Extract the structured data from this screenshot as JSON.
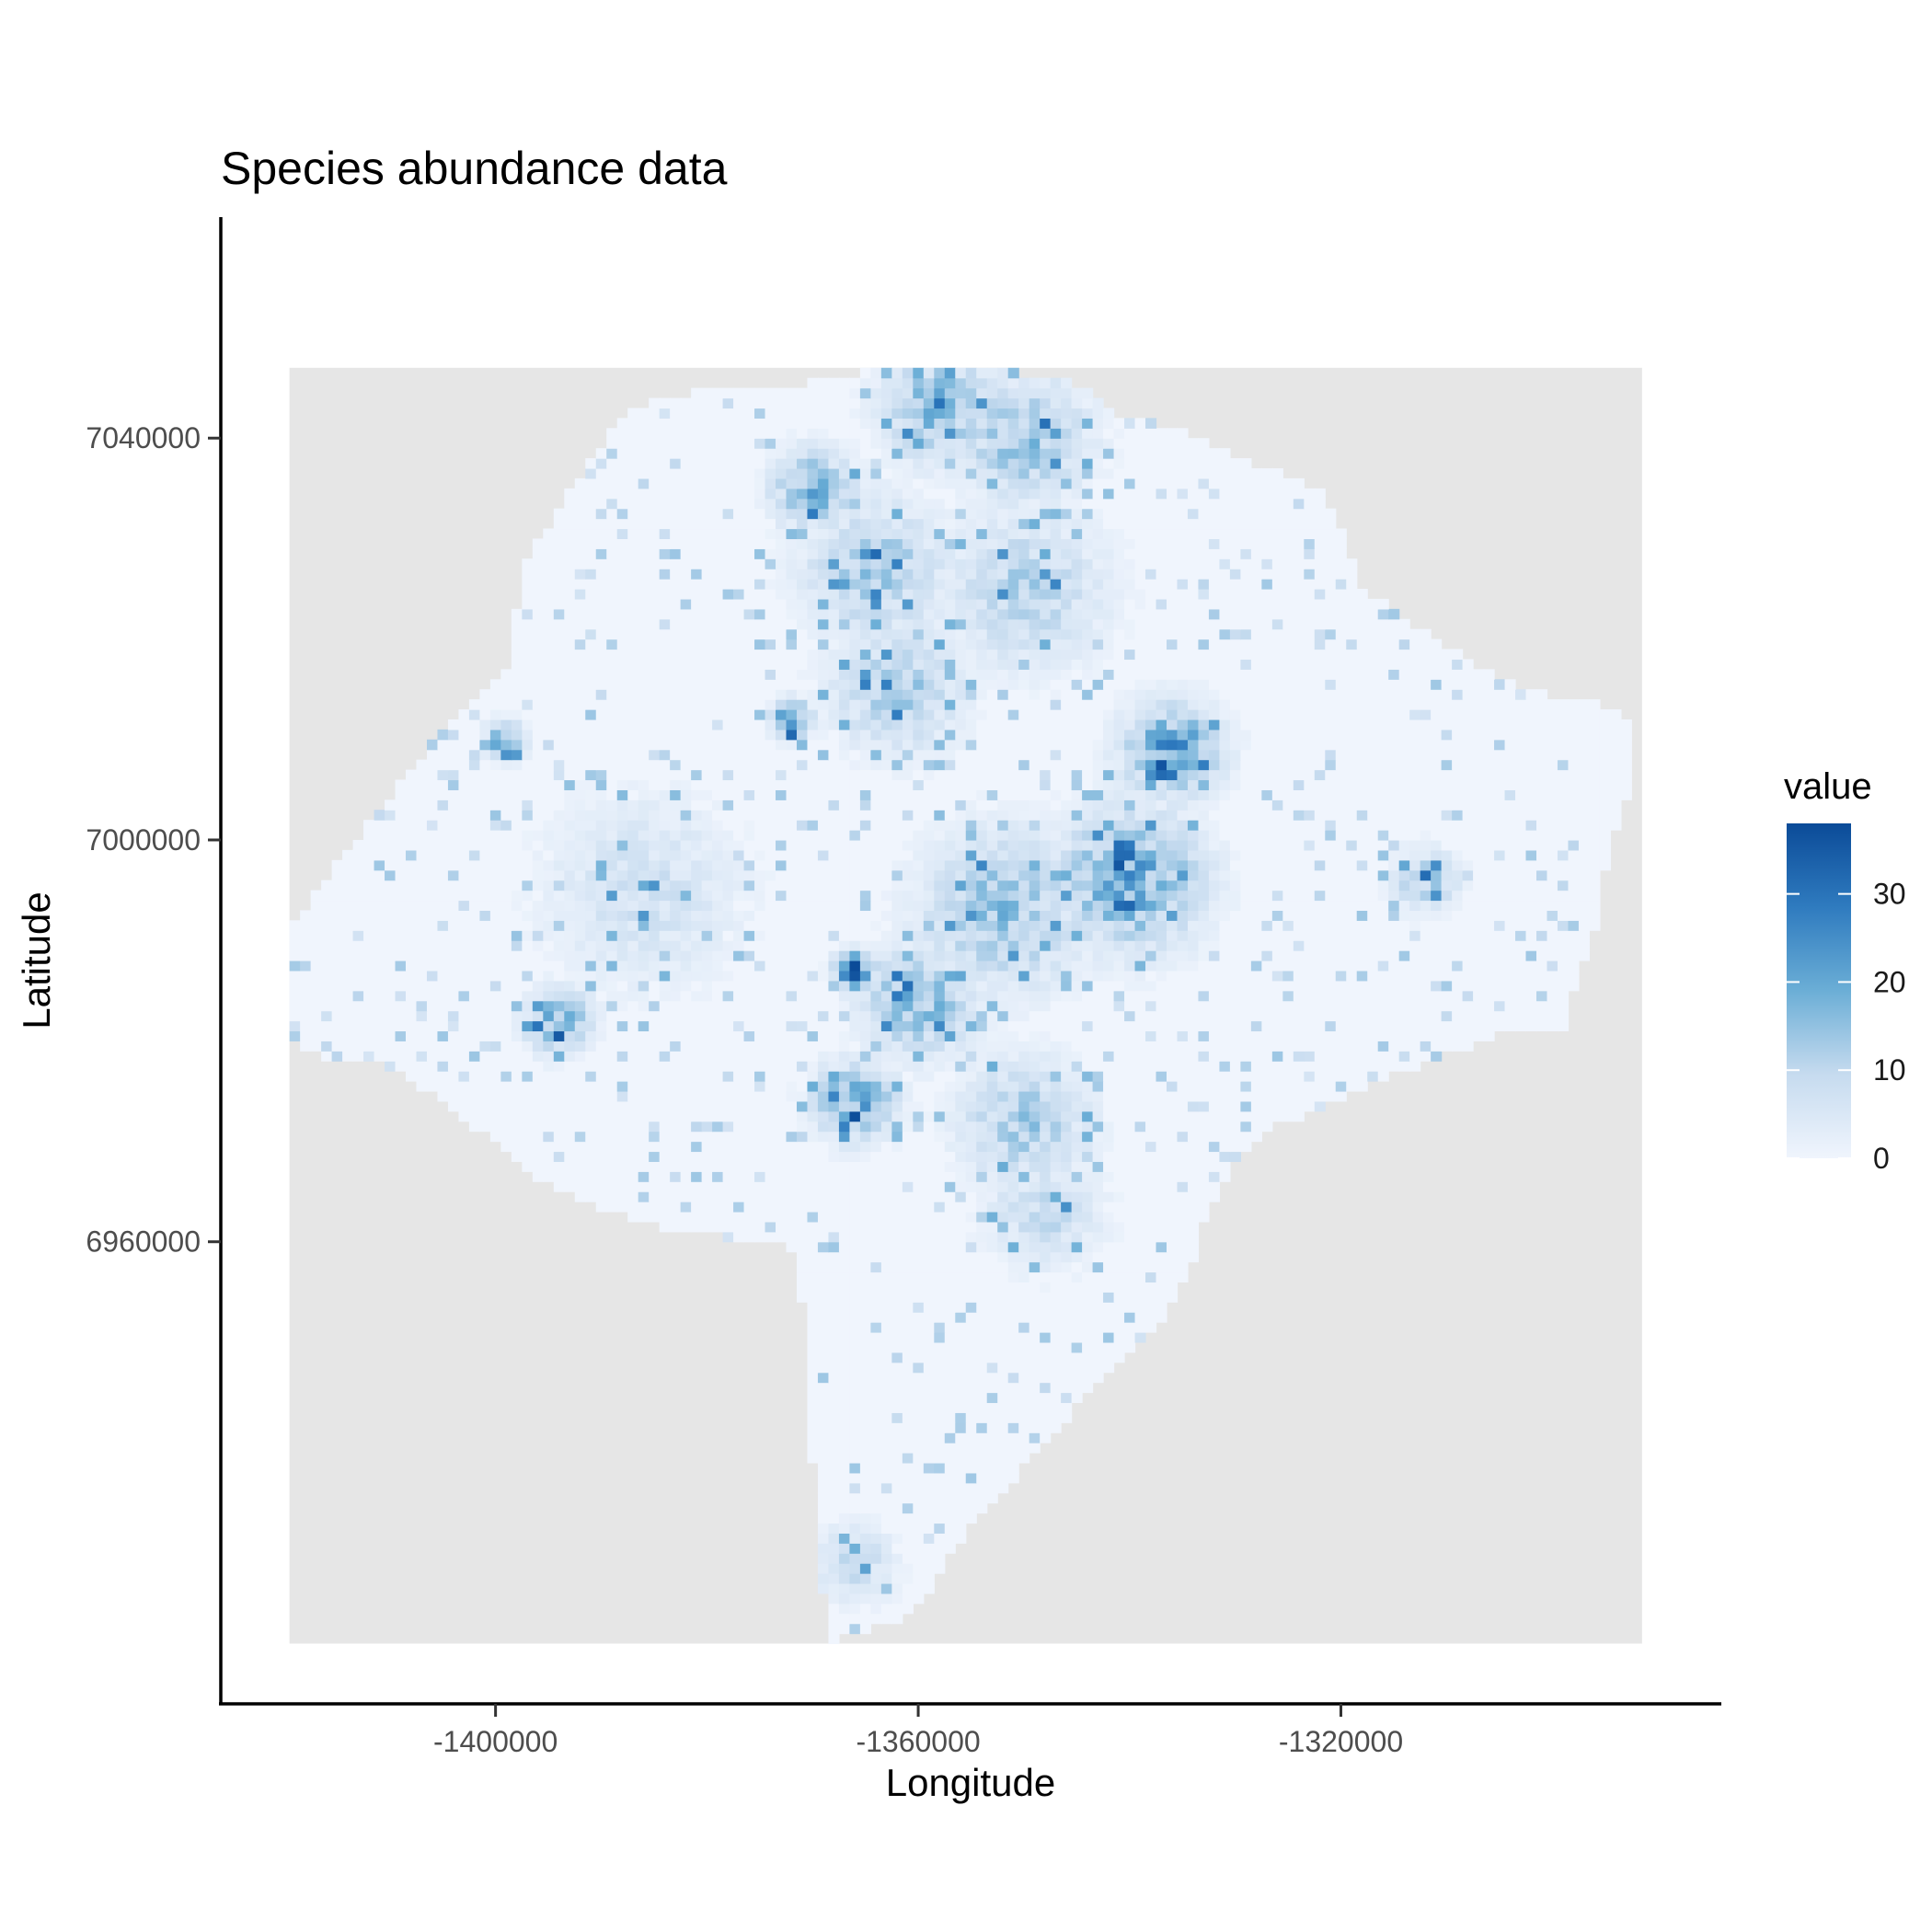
{
  "chart_data": {
    "type": "heatmap",
    "title": "Species abundance data",
    "xlabel": "Longitude",
    "ylabel": "Latitude",
    "x_ticks": [
      -1400000,
      -1360000,
      -1320000
    ],
    "x_tick_labels": [
      "-1400000",
      "-1360000",
      "-1320000"
    ],
    "y_ticks": [
      7040000,
      7000000,
      6960000
    ],
    "y_tick_labels": [
      "7040000",
      "7000000",
      "6960000"
    ],
    "xlim": [
      -1426000,
      -1284000
    ],
    "ylim": [
      6914000,
      7062000
    ],
    "raster_extent": {
      "x": [
        -1419500,
        -1291500
      ],
      "y": [
        6920000,
        7047000
      ]
    },
    "na_color": "#e6e6e6",
    "grid": false,
    "legend": {
      "title": "value",
      "position": "right",
      "range": [
        0,
        38
      ],
      "breaks": [
        0,
        10,
        20,
        30
      ],
      "break_labels": [
        "0",
        "10",
        "20",
        "30"
      ],
      "low_color": "#f0f5fd",
      "high_color": "#0b4b98"
    },
    "region_outline": [
      [
        -1354000,
        7047000
      ],
      [
        -1346000,
        7046000
      ],
      [
        -1341000,
        7042500
      ],
      [
        -1336000,
        7041000
      ],
      [
        -1328000,
        7037500
      ],
      [
        -1322000,
        7035000
      ],
      [
        -1320000,
        7031000
      ],
      [
        -1318000,
        7025000
      ],
      [
        -1311000,
        7020000
      ],
      [
        -1303000,
        7015000
      ],
      [
        -1293500,
        7013000
      ],
      [
        -1292000,
        7009000
      ],
      [
        -1293000,
        7004000
      ],
      [
        -1295000,
        6997000
      ],
      [
        -1296000,
        6991000
      ],
      [
        -1298000,
        6985000
      ],
      [
        -1298500,
        6981000
      ],
      [
        -1304000,
        6981000
      ],
      [
        -1309000,
        6979000
      ],
      [
        -1314000,
        6977000
      ],
      [
        -1320000,
        6974000
      ],
      [
        -1326000,
        6971500
      ],
      [
        -1330000,
        6968000
      ],
      [
        -1333000,
        6962000
      ],
      [
        -1334000,
        6958000
      ],
      [
        -1337000,
        6952000
      ],
      [
        -1343000,
        6946000
      ],
      [
        -1348000,
        6940000
      ],
      [
        -1353000,
        6934000
      ],
      [
        -1357000,
        6929000
      ],
      [
        -1359000,
        6925000
      ],
      [
        -1362000,
        6922000
      ],
      [
        -1366000,
        6921000
      ],
      [
        -1368500,
        6920000
      ],
      [
        -1369000,
        6925000
      ],
      [
        -1369500,
        6930000
      ],
      [
        -1370000,
        6938000
      ],
      [
        -1370500,
        6946000
      ],
      [
        -1371000,
        6954000
      ],
      [
        -1371500,
        6959000
      ],
      [
        -1374000,
        6960000
      ],
      [
        -1378000,
        6960500
      ],
      [
        -1384000,
        6961500
      ],
      [
        -1389000,
        6963000
      ],
      [
        -1394000,
        6965000
      ],
      [
        -1398000,
        6968000
      ],
      [
        -1401500,
        6971000
      ],
      [
        -1405000,
        6974000
      ],
      [
        -1408500,
        6976500
      ],
      [
        -1412000,
        6978000
      ],
      [
        -1416000,
        6978000
      ],
      [
        -1419500,
        6980000
      ],
      [
        -1419500,
        6985000
      ],
      [
        -1419500,
        6991000
      ],
      [
        -1417000,
        6995000
      ],
      [
        -1414000,
        6999000
      ],
      [
        -1411000,
        7003000
      ],
      [
        -1408000,
        7007000
      ],
      [
        -1405000,
        7011000
      ],
      [
        -1402000,
        7014000
      ],
      [
        -1398500,
        7018000
      ],
      [
        -1398000,
        7023000
      ],
      [
        -1397000,
        7028000
      ],
      [
        -1394000,
        7033000
      ],
      [
        -1391000,
        7038000
      ],
      [
        -1388000,
        7042000
      ],
      [
        -1384000,
        7044000
      ],
      [
        -1378000,
        7045000
      ],
      [
        -1370000,
        7045500
      ],
      [
        -1365000,
        7046500
      ],
      [
        -1360000,
        7047000
      ]
    ],
    "abundance_hotspots": [
      {
        "lon": -1358000,
        "lat": 7043000,
        "value": 18,
        "spread": 3500
      },
      {
        "lon": -1350000,
        "lat": 7040000,
        "value": 16,
        "spread": 4000
      },
      {
        "lon": -1370000,
        "lat": 7035000,
        "value": 20,
        "spread": 2500
      },
      {
        "lon": -1364000,
        "lat": 7027000,
        "value": 14,
        "spread": 4500
      },
      {
        "lon": -1350000,
        "lat": 7025000,
        "value": 12,
        "spread": 5000
      },
      {
        "lon": -1372000,
        "lat": 7012000,
        "value": 30,
        "spread": 1200
      },
      {
        "lon": -1362000,
        "lat": 7015000,
        "value": 14,
        "spread": 4000
      },
      {
        "lon": -1336000,
        "lat": 7009000,
        "value": 24,
        "spread": 3000
      },
      {
        "lon": -1340000,
        "lat": 6996000,
        "value": 22,
        "spread": 4500
      },
      {
        "lon": -1352000,
        "lat": 6993000,
        "value": 16,
        "spread": 5000
      },
      {
        "lon": -1366000,
        "lat": 6987000,
        "value": 36,
        "spread": 1200
      },
      {
        "lon": -1360000,
        "lat": 6984000,
        "value": 18,
        "spread": 3500
      },
      {
        "lon": -1366000,
        "lat": 6974000,
        "value": 22,
        "spread": 2500
      },
      {
        "lon": -1350000,
        "lat": 6972000,
        "value": 14,
        "spread": 4000
      },
      {
        "lon": -1348000,
        "lat": 6963000,
        "value": 10,
        "spread": 3500
      },
      {
        "lon": -1394000,
        "lat": 6982000,
        "value": 22,
        "spread": 2000
      },
      {
        "lon": -1399000,
        "lat": 7010000,
        "value": 24,
        "spread": 1200
      },
      {
        "lon": -1312000,
        "lat": 6996000,
        "value": 14,
        "spread": 2000
      },
      {
        "lon": -1366000,
        "lat": 6928000,
        "value": 10,
        "spread": 2500
      },
      {
        "lon": -1386000,
        "lat": 6995000,
        "value": 8,
        "spread": 6000
      }
    ]
  }
}
